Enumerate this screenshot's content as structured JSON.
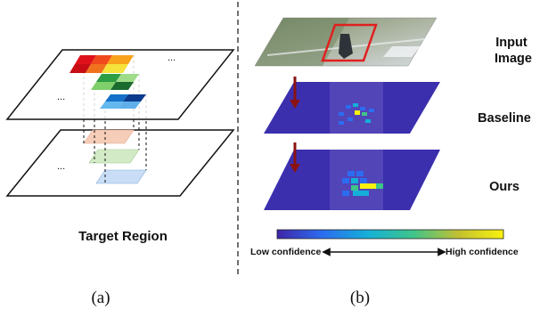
{
  "panel_a": {
    "title": "Target Region",
    "dots": "...",
    "subcaption": "(a)",
    "colors": {
      "row1": [
        "#e0101a",
        "#f04a1c",
        "#f7a21a",
        "#f5e23a"
      ],
      "row2": [
        "#7fcf6a",
        "#2e9e45",
        "#1a6b2e",
        "#9fdc8a"
      ],
      "row3": [
        "#63b8ee",
        "#1570c9",
        "#0b3b8c",
        "#5fb0ea"
      ],
      "ghost1": "#f6cdb8",
      "ghost2": "#d2ebc6",
      "ghost3": "#c9def6"
    }
  },
  "panel_b": {
    "label_input": [
      "Input",
      "Image"
    ],
    "label_baseline": "Baseline",
    "label_ours": "Ours",
    "colorbar_low": "Low confidence",
    "colorbar_high": "High confidence",
    "subcaption": "(b)",
    "colors": {
      "plane": "#3b2fae",
      "arrow": "#8a1212",
      "highlight_box": "#e02020"
    }
  }
}
